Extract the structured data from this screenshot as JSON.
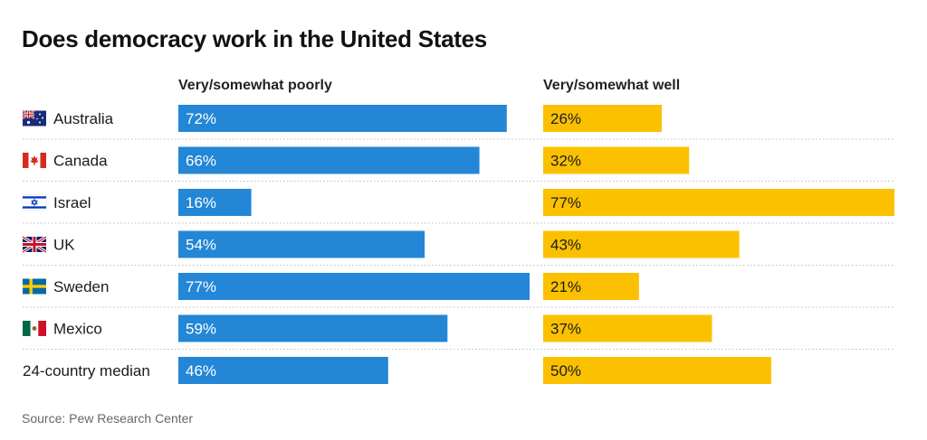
{
  "title": "Does democracy work in the United States",
  "source": "Source: Pew Research Center",
  "chart_data": {
    "type": "bar",
    "categories": [
      "Australia",
      "Canada",
      "Israel",
      "UK",
      "Sweden",
      "Mexico",
      "24-country median"
    ],
    "flags": [
      "australia-flag-icon",
      "canada-flag-icon",
      "israel-flag-icon",
      "uk-flag-icon",
      "sweden-flag-icon",
      "mexico-flag-icon",
      ""
    ],
    "series": [
      {
        "name": "Very/somewhat poorly",
        "values": [
          72,
          66,
          16,
          54,
          77,
          59,
          46
        ],
        "color": "#2386d6",
        "labels": [
          "72%",
          "66%",
          "16%",
          "54%",
          "77%",
          "59%",
          "46%"
        ]
      },
      {
        "name": "Very/somewhat well",
        "values": [
          26,
          32,
          77,
          43,
          21,
          37,
          50
        ],
        "color": "#fbc100",
        "labels": [
          "26%",
          "32%",
          "77%",
          "43%",
          "21%",
          "37%",
          "50%"
        ]
      }
    ],
    "xlim": [
      0,
      77
    ],
    "grid": false
  }
}
